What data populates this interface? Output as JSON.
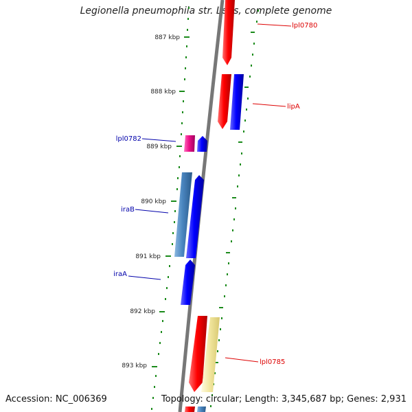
{
  "title": "Legionella pneumophila str. Lens, complete genome",
  "footer": {
    "accession": "Accession: NC_006369",
    "summary": "Topology: circular; Length: 3,345,687 bp; Genes: 2,931"
  },
  "colors": {
    "backbone": "#777777",
    "tick": "#1a8a1a",
    "forward_label": "#dd0000",
    "reverse_label": "#0000aa"
  },
  "kbp_labels": [
    {
      "id": "887",
      "text": "887 kbp"
    },
    {
      "id": "888",
      "text": "888 kbp"
    },
    {
      "id": "889",
      "text": "889 kbp"
    },
    {
      "id": "890",
      "text": "890 kbp"
    },
    {
      "id": "891",
      "text": "891 kbp"
    },
    {
      "id": "892",
      "text": "892 kbp"
    },
    {
      "id": "893",
      "text": "893 kbp"
    }
  ],
  "gene_labels": [
    {
      "id": "lpl0780",
      "text": "lpl0780",
      "strand": "forward"
    },
    {
      "id": "lipA",
      "text": "lipA",
      "strand": "forward"
    },
    {
      "id": "lpl0782",
      "text": "lpl0782",
      "strand": "reverse"
    },
    {
      "id": "iraB",
      "text": "iraB",
      "strand": "reverse"
    },
    {
      "id": "iraA",
      "text": "iraA",
      "strand": "reverse"
    },
    {
      "id": "lpl0785",
      "text": "lpl0785",
      "strand": "forward"
    }
  ],
  "features": [
    {
      "id": "lpl0780",
      "type": "CDS",
      "color": "#ff0000"
    },
    {
      "id": "lpl0781",
      "type": "CDS",
      "color": "#ff0000"
    },
    {
      "id": "lipA",
      "type": "gene",
      "color": "#0000ff"
    },
    {
      "id": "lpl0782",
      "type": "CDS",
      "color": "#ee1188"
    },
    {
      "id": "lpl0782b",
      "type": "gene",
      "color": "#0000ff"
    },
    {
      "id": "iraB",
      "type": "CDS",
      "color": "#4a86c0"
    },
    {
      "id": "iraB-gene",
      "type": "gene",
      "color": "#0000ff"
    },
    {
      "id": "iraA",
      "type": "gene",
      "color": "#0000ff"
    },
    {
      "id": "lpl0785",
      "type": "CDS",
      "color": "#ff0000"
    },
    {
      "id": "lpl0785-misc",
      "type": "misc",
      "color": "#f2e7a0"
    },
    {
      "id": "lpl0786",
      "type": "CDS",
      "color": "#ff0000"
    },
    {
      "id": "lpl0786-b",
      "type": "CDS",
      "color": "#4a86c0"
    }
  ]
}
